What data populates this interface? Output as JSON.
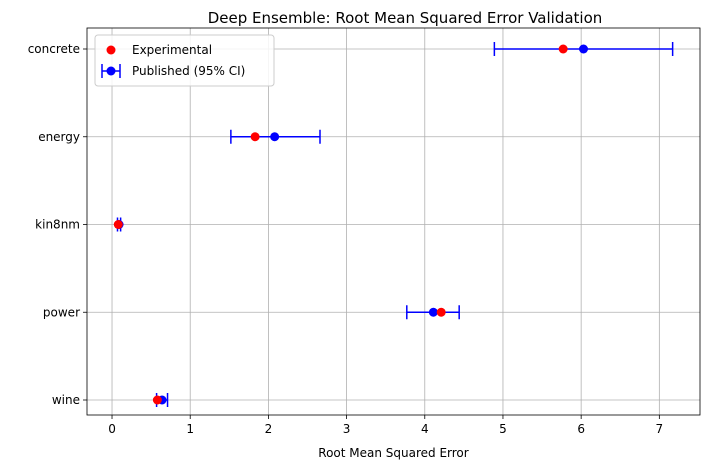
{
  "chart_data": {
    "type": "scatter",
    "orientation": "horizontal",
    "title": "Deep Ensemble: Root Mean Squared Error Validation",
    "xlabel": "Root Mean Squared Error",
    "ylabel": "",
    "xlim": [
      -0.32,
      7.52
    ],
    "x_ticks": [
      0,
      1,
      2,
      3,
      4,
      5,
      6,
      7
    ],
    "categories": [
      "concrete",
      "energy",
      "kin8nm",
      "power",
      "wine"
    ],
    "grid": true,
    "legend": "upper-left",
    "series": [
      {
        "name": "Experimental",
        "color": "#ff0000",
        "marker": "circle",
        "values": [
          5.77,
          1.83,
          0.08,
          4.21,
          0.58
        ]
      },
      {
        "name": "Published (95% CI)",
        "color": "#0000ff",
        "marker": "circle-errorbar",
        "values": [
          6.03,
          2.08,
          0.09,
          4.11,
          0.64
        ],
        "ci_low": [
          4.89,
          1.52,
          0.07,
          3.77,
          0.57
        ],
        "ci_high": [
          7.17,
          2.66,
          0.11,
          4.44,
          0.71
        ]
      }
    ]
  }
}
